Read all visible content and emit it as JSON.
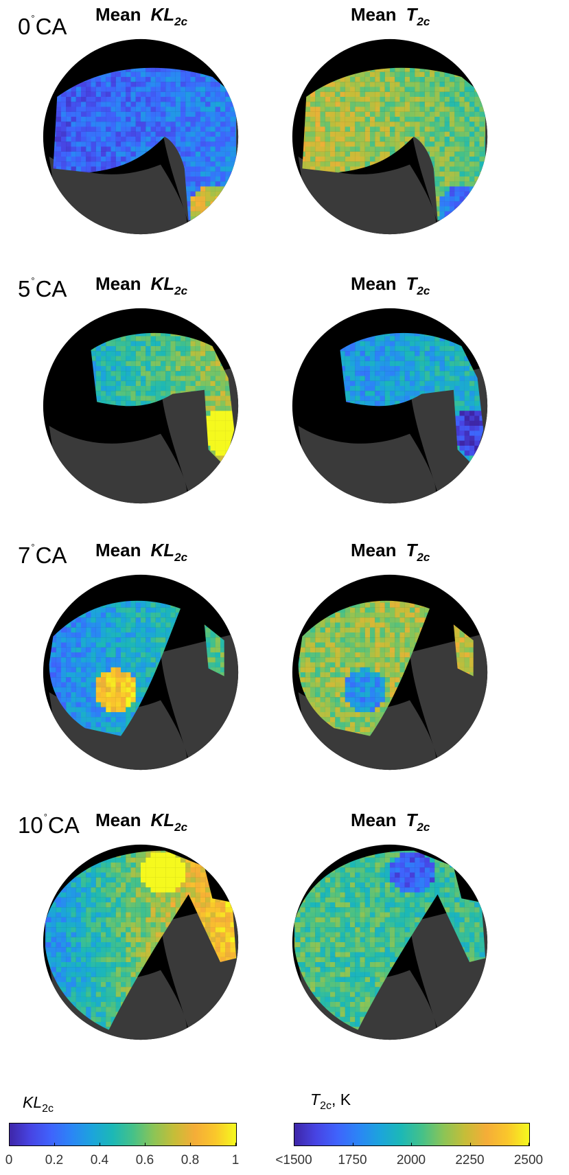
{
  "chart_data": {
    "type": "heatmap",
    "description_panels": [
      {
        "crank_angle": "0",
        "crank_unit": "CA",
        "left": {
          "title_word": "Mean",
          "title_symbol": "KL",
          "title_sub": "2c",
          "quantity": "KL2c"
        },
        "right": {
          "title_word": "Mean",
          "title_symbol": "T",
          "title_sub": "2c",
          "quantity": "T2c"
        }
      },
      {
        "crank_angle": "5",
        "crank_unit": "CA",
        "left": {
          "title_word": "Mean",
          "title_symbol": "KL",
          "title_sub": "2c",
          "quantity": "KL2c"
        },
        "right": {
          "title_word": "Mean",
          "title_symbol": "T",
          "title_sub": "2c",
          "quantity": "T2c"
        }
      },
      {
        "crank_angle": "7",
        "crank_unit": "CA",
        "left": {
          "title_word": "Mean",
          "title_symbol": "KL",
          "title_sub": "2c",
          "quantity": "KL2c"
        },
        "right": {
          "title_word": "Mean",
          "title_symbol": "T",
          "title_sub": "2c",
          "quantity": "T2c"
        }
      },
      {
        "crank_angle": "10",
        "crank_unit": "CA",
        "left": {
          "title_word": "Mean",
          "title_symbol": "KL",
          "title_sub": "2c",
          "quantity": "KL2c"
        },
        "right": {
          "title_word": "Mean",
          "title_symbol": "T",
          "title_sub": "2c",
          "quantity": "T2c"
        }
      }
    ],
    "colorbars": [
      {
        "label_symbol": "KL",
        "label_sub": "2c",
        "label_unit": "",
        "range": [
          0,
          1
        ],
        "ticks": [
          "0",
          "0.2",
          "0.4",
          "0.6",
          "0.8",
          "1"
        ],
        "tick_values": [
          0,
          0.2,
          0.4,
          0.6,
          0.8,
          1
        ]
      },
      {
        "label_symbol": "T",
        "label_sub": "2c",
        "label_unit": ", K",
        "range": [
          1500,
          2500
        ],
        "ticks": [
          "<1500",
          "1750",
          "2000",
          "2250",
          "2500"
        ],
        "tick_values": [
          1500,
          1750,
          2000,
          2250,
          2500
        ]
      }
    ],
    "colormap": "parula",
    "colormap_stops": [
      "#3e26a8",
      "#4744e3",
      "#3f63fc",
      "#2b85f6",
      "#1ca4dc",
      "#1cb8b6",
      "#46c188",
      "#8cc456",
      "#c6bd38",
      "#f5ad38",
      "#fac72b",
      "#f5f91e"
    ],
    "background_color": "#000000",
    "masked_color": "#3a3a3a"
  },
  "labels": {
    "row0": {
      "angle": "0",
      "unit": "CA"
    },
    "row1": {
      "angle": "5",
      "unit": "CA"
    },
    "row2": {
      "angle": "7",
      "unit": "CA"
    },
    "row3": {
      "angle": "10",
      "unit": "CA"
    }
  }
}
